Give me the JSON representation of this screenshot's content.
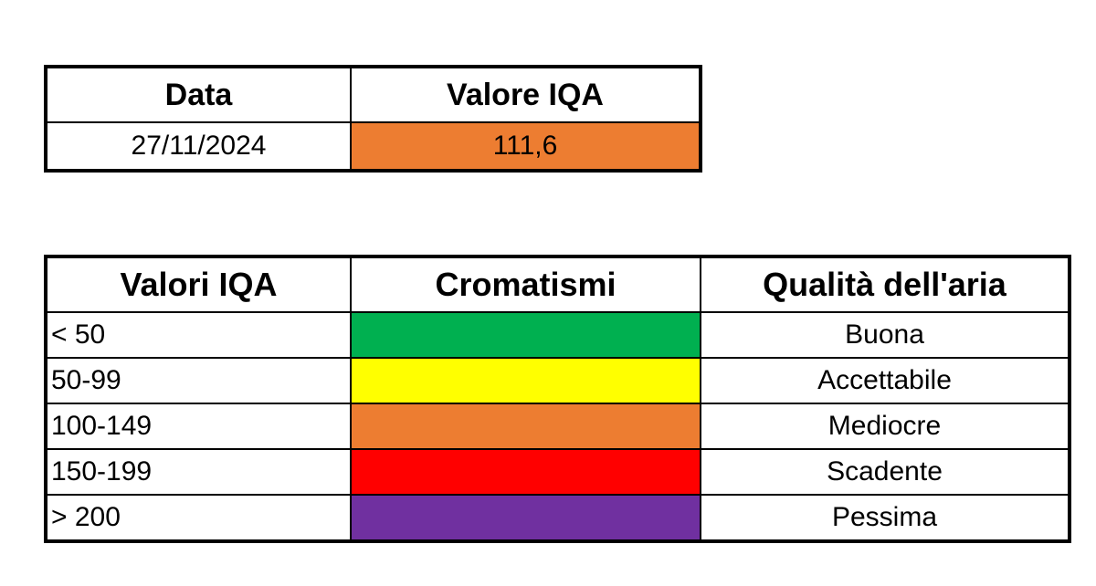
{
  "summary": {
    "headers": [
      "Data",
      "Valore IQA"
    ],
    "date": "27/11/2024",
    "value": "111,6",
    "value_color": "#ED7D31"
  },
  "legend": {
    "headers": [
      "Valori IQA",
      "Cromatismi",
      "Qualità dell'aria"
    ],
    "rows": [
      {
        "range": "< 50",
        "color": "#00B050",
        "quality": "Buona"
      },
      {
        "range": "50-99",
        "color": "#FFFF00",
        "quality": "Accettabile"
      },
      {
        "range": "100-149",
        "color": "#ED7D31",
        "quality": "Mediocre"
      },
      {
        "range": "150-199",
        "color": "#FF0000",
        "quality": "Scadente"
      },
      {
        "range": "> 200",
        "color": "#7030A0",
        "quality": "Pessima"
      }
    ]
  }
}
